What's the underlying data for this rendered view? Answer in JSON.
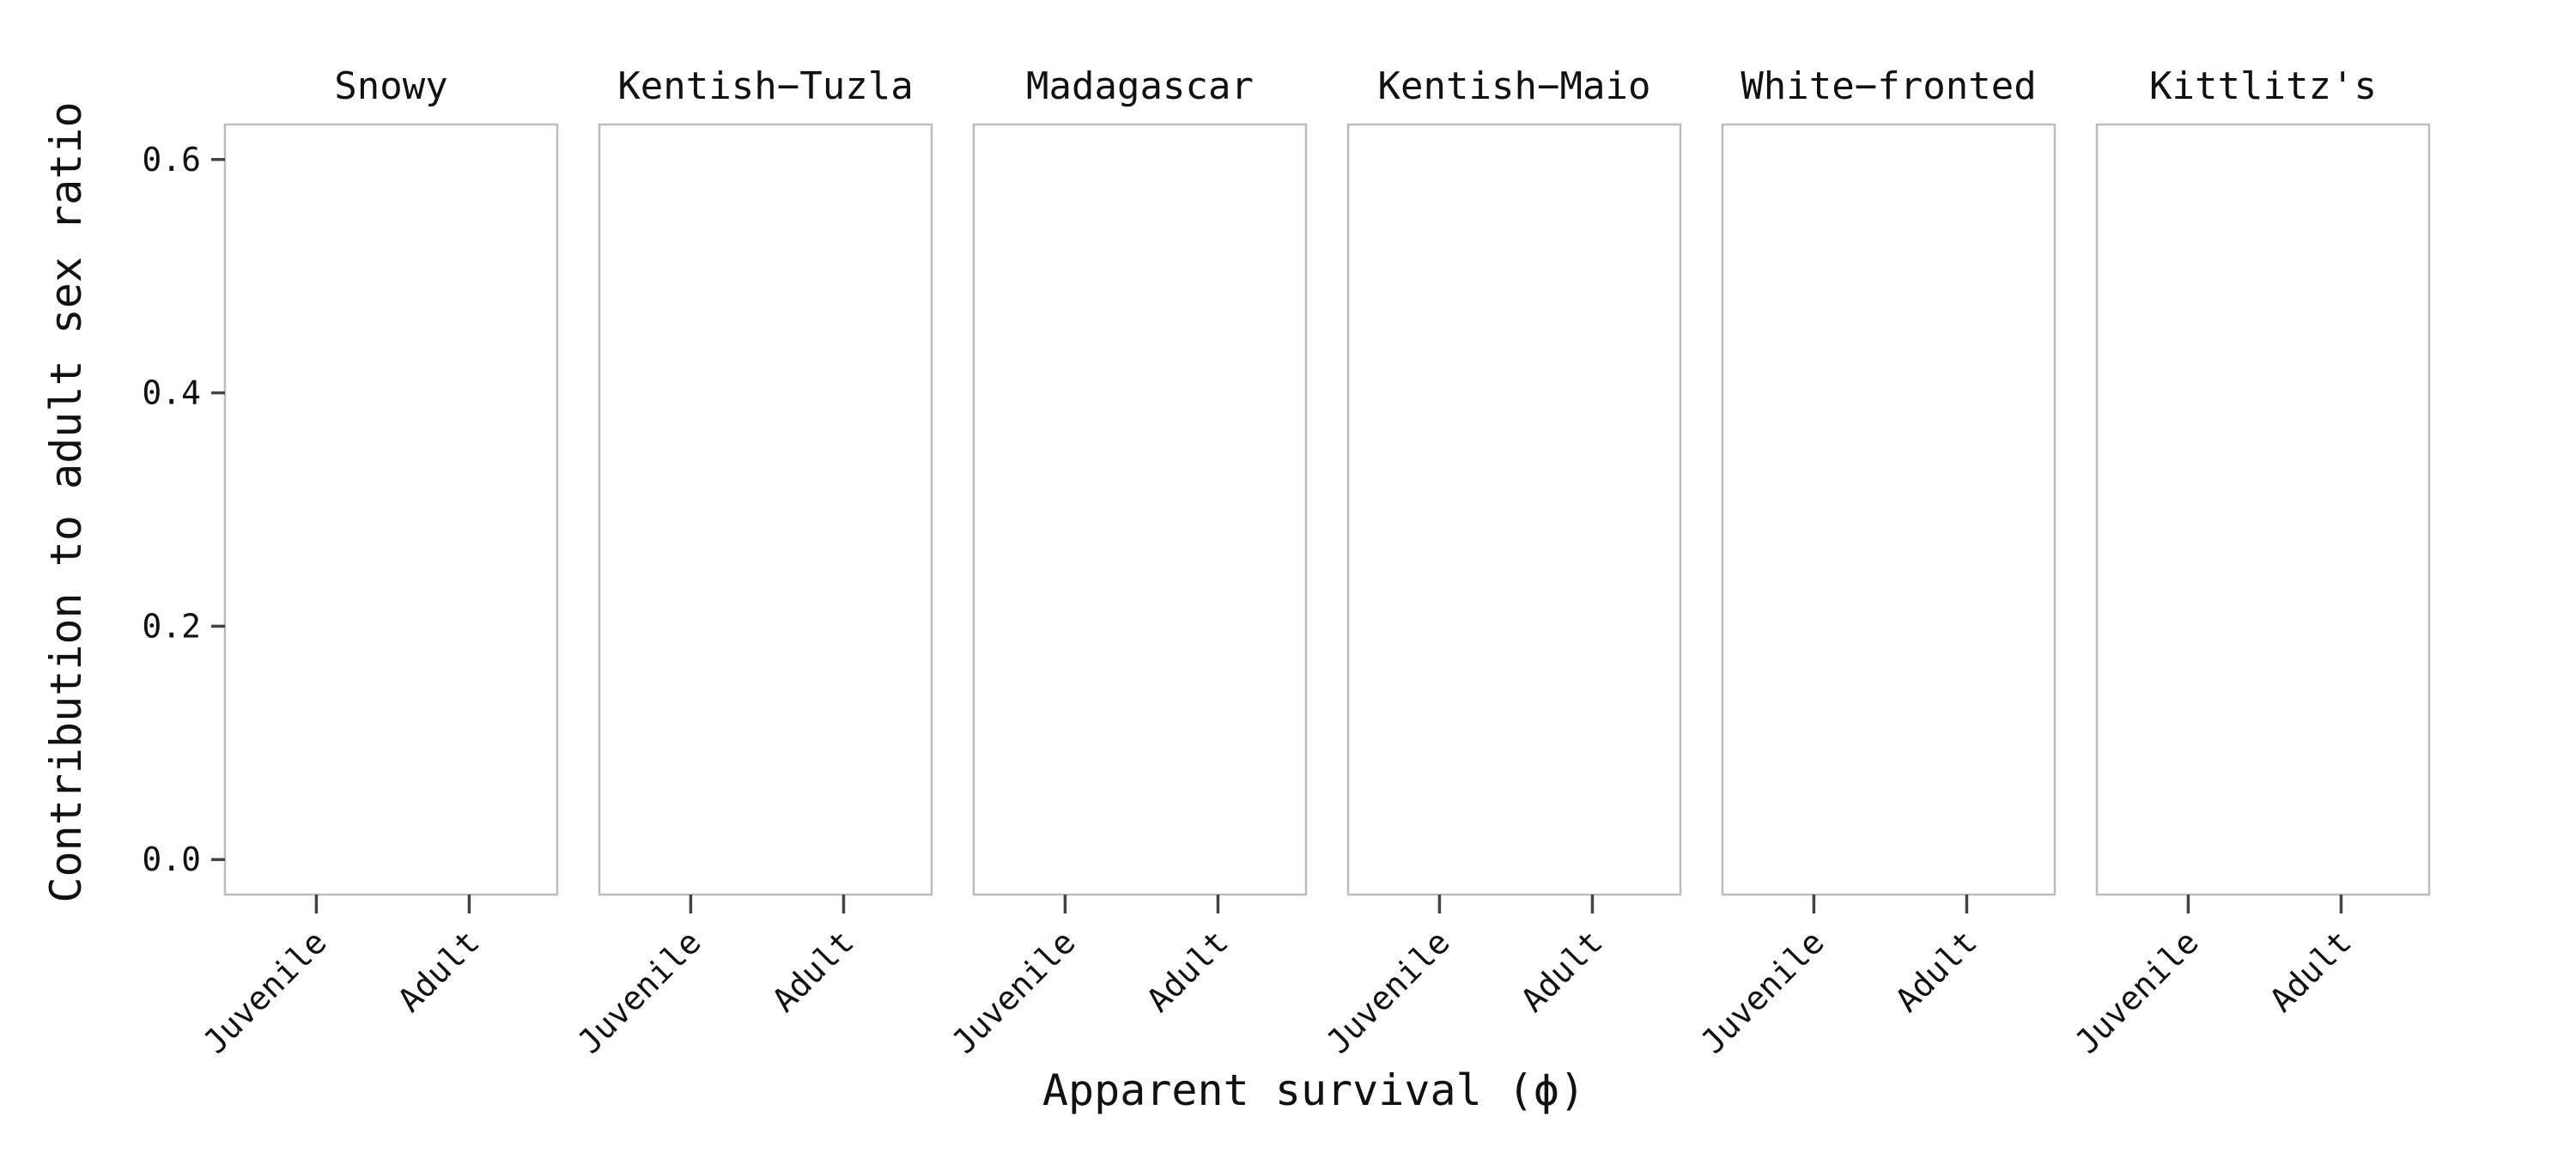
{
  "chart_data": {
    "type": "bar",
    "facet_titles": [
      "Snowy",
      "Kentish−Tuzla",
      "Madagascar",
      "Kentish−Maio",
      "White−fronted",
      "Kittlitz's"
    ],
    "categories": [
      "Juvenile",
      "Adult"
    ],
    "xlabel": "Apparent survival (ϕ)",
    "ylabel": "Contribution to adult sex ratio",
    "yticks": [
      "0.0",
      "0.2",
      "0.4",
      "0.6"
    ],
    "ylim": [
      -0.03,
      0.63
    ],
    "grid": false,
    "series": []
  }
}
